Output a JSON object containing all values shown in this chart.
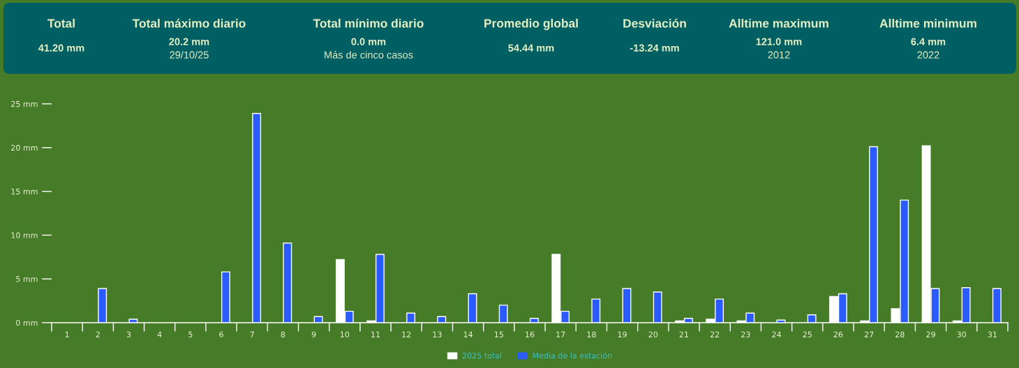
{
  "chart_data": [
    {
      "type": "other",
      "categories": [
        "Total",
        "Total máximo diario",
        "Total mínimo diario",
        "Promedio global",
        "Desviación",
        "Alltime maximum",
        "Alltime minimum"
      ],
      "value_labels": [
        "41.20 mm",
        "20.2 mm\n29/10/25",
        "0.0 mm\nMás de cinco casos",
        "54.44 mm",
        "-13.24 mm",
        "121.0 mm\n2012",
        "6.4 mm\n2022"
      ]
    },
    {
      "type": "bar",
      "categories": [
        "1",
        "2",
        "3",
        "4",
        "5",
        "6",
        "7",
        "8",
        "9",
        "10",
        "11",
        "12",
        "13",
        "14",
        "15",
        "16",
        "17",
        "18",
        "19",
        "20",
        "21",
        "22",
        "23",
        "24",
        "25",
        "26",
        "27",
        "28",
        "29",
        "30",
        "31"
      ],
      "series": [
        {
          "name": "2025 total",
          "color": "#ffffff",
          "values": [
            0,
            0,
            0,
            0,
            0,
            0,
            0,
            0,
            0,
            7.2,
            0.2,
            0,
            0,
            0,
            0,
            0,
            7.8,
            0,
            0,
            0,
            0.2,
            0.4,
            0.2,
            0,
            0,
            3.0,
            0.2,
            1.6,
            20.2,
            0.2,
            0
          ]
        },
        {
          "name": "Media de la estación",
          "color": "#2a5bff",
          "values": [
            0,
            3.9,
            0.4,
            0,
            0,
            5.8,
            23.9,
            9.1,
            0.7,
            1.3,
            7.8,
            1.1,
            0.7,
            3.3,
            2.0,
            0.5,
            1.3,
            2.7,
            3.9,
            3.5,
            0.5,
            2.7,
            1.1,
            0.3,
            0.9,
            3.3,
            20.1,
            14.0,
            3.9,
            4.0,
            3.9
          ]
        }
      ],
      "ylim": [
        0,
        25
      ],
      "yticks": [
        {
          "value": 0,
          "label": "0 mm"
        },
        {
          "value": 5,
          "label": "5 mm"
        },
        {
          "value": 10,
          "label": "10 mm"
        },
        {
          "value": 15,
          "label": "15 mm"
        },
        {
          "value": 20,
          "label": "20 mm"
        },
        {
          "value": 25,
          "label": "25 mm"
        }
      ],
      "legend": "bottom"
    }
  ]
}
